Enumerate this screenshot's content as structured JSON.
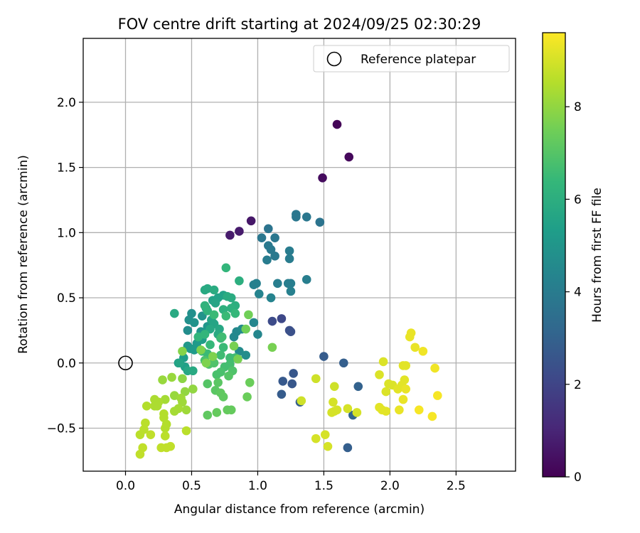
{
  "chart_data": {
    "type": "scatter",
    "title": "FOV centre drift starting at 2024/09/25 02:30:29",
    "xlabel": "Angular distance from reference (arcmin)",
    "ylabel": "Rotation from reference (arcmin)",
    "xlim": [
      -0.32,
      2.95
    ],
    "ylim": [
      -0.83,
      2.49
    ],
    "xticks": [
      0.0,
      0.5,
      1.0,
      1.5,
      2.0,
      2.5
    ],
    "xtick_labels": [
      "0.0",
      "0.5",
      "1.0",
      "1.5",
      "2.0",
      "2.5"
    ],
    "yticks": [
      -0.5,
      0.0,
      0.5,
      1.0,
      1.5,
      2.0
    ],
    "ytick_labels": [
      "−0.5",
      "0.0",
      "0.5",
      "1.0",
      "1.5",
      "2.0"
    ],
    "grid": true,
    "legend": {
      "placement": "top-right",
      "entries": [
        "Reference platepar"
      ]
    },
    "colorbar": {
      "label": "Hours from first FF file",
      "range": [
        0,
        9.6
      ],
      "ticks": [
        0,
        2,
        4,
        6,
        8
      ],
      "tick_labels": [
        "0",
        "2",
        "4",
        "6",
        "8"
      ],
      "colormap": "viridis",
      "colors": [
        "#440154",
        "#482878",
        "#3e4989",
        "#31688e",
        "#26828e",
        "#1f9e89",
        "#35b779",
        "#6ece58",
        "#b5de2b",
        "#fde725"
      ]
    },
    "reference_point": {
      "x": 0.0,
      "y": 0.0,
      "label": "Reference platepar"
    },
    "points": [
      {
        "x": 1.6,
        "y": 1.83,
        "t": 0.1
      },
      {
        "x": 1.69,
        "y": 1.58,
        "t": 0.2
      },
      {
        "x": 1.49,
        "y": 1.42,
        "t": 0.3
      },
      {
        "x": 0.95,
        "y": 1.09,
        "t": 0.6
      },
      {
        "x": 0.86,
        "y": 1.01,
        "t": 0.7
      },
      {
        "x": 0.79,
        "y": 0.98,
        "t": 0.7
      },
      {
        "x": 1.18,
        "y": 0.34,
        "t": 2.1
      },
      {
        "x": 1.11,
        "y": 0.32,
        "t": 2.2
      },
      {
        "x": 1.24,
        "y": 0.25,
        "t": 2.3
      },
      {
        "x": 1.25,
        "y": 0.24,
        "t": 2.4
      },
      {
        "x": 1.27,
        "y": -0.08,
        "t": 2.6
      },
      {
        "x": 1.19,
        "y": -0.14,
        "t": 2.7
      },
      {
        "x": 1.26,
        "y": -0.16,
        "t": 2.6
      },
      {
        "x": 1.18,
        "y": -0.24,
        "t": 2.8
      },
      {
        "x": 1.32,
        "y": -0.3,
        "t": 2.9
      },
      {
        "x": 1.5,
        "y": 0.05,
        "t": 2.8
      },
      {
        "x": 1.65,
        "y": 0.0,
        "t": 2.9
      },
      {
        "x": 1.76,
        "y": -0.18,
        "t": 3.0
      },
      {
        "x": 1.72,
        "y": -0.4,
        "t": 3.1
      },
      {
        "x": 1.68,
        "y": -0.65,
        "t": 2.9
      },
      {
        "x": 1.29,
        "y": 1.14,
        "t": 3.8
      },
      {
        "x": 1.29,
        "y": 1.12,
        "t": 3.8
      },
      {
        "x": 1.37,
        "y": 1.12,
        "t": 3.8
      },
      {
        "x": 1.47,
        "y": 1.08,
        "t": 3.7
      },
      {
        "x": 1.08,
        "y": 1.03,
        "t": 3.7
      },
      {
        "x": 1.03,
        "y": 0.96,
        "t": 3.8
      },
      {
        "x": 1.13,
        "y": 0.96,
        "t": 3.8
      },
      {
        "x": 1.08,
        "y": 0.9,
        "t": 3.9
      },
      {
        "x": 1.1,
        "y": 0.87,
        "t": 3.9
      },
      {
        "x": 1.13,
        "y": 0.82,
        "t": 3.9
      },
      {
        "x": 1.07,
        "y": 0.79,
        "t": 4.0
      },
      {
        "x": 1.24,
        "y": 0.86,
        "t": 4.0
      },
      {
        "x": 1.24,
        "y": 0.8,
        "t": 4.0
      },
      {
        "x": 1.15,
        "y": 0.61,
        "t": 4.1
      },
      {
        "x": 1.23,
        "y": 0.61,
        "t": 4.1
      },
      {
        "x": 1.25,
        "y": 0.61,
        "t": 4.1
      },
      {
        "x": 1.37,
        "y": 0.64,
        "t": 4.1
      },
      {
        "x": 0.97,
        "y": 0.6,
        "t": 4.2
      },
      {
        "x": 0.99,
        "y": 0.61,
        "t": 4.2
      },
      {
        "x": 1.25,
        "y": 0.55,
        "t": 4.2
      },
      {
        "x": 1.1,
        "y": 0.5,
        "t": 4.3
      },
      {
        "x": 1.01,
        "y": 0.53,
        "t": 4.3
      },
      {
        "x": 0.97,
        "y": 0.31,
        "t": 4.4
      },
      {
        "x": 1.0,
        "y": 0.22,
        "t": 4.4
      },
      {
        "x": 0.82,
        "y": 0.2,
        "t": 4.5
      },
      {
        "x": 0.84,
        "y": 0.24,
        "t": 4.5
      },
      {
        "x": 0.88,
        "y": 0.26,
        "t": 4.6
      },
      {
        "x": 0.86,
        "y": 0.09,
        "t": 4.6
      },
      {
        "x": 0.91,
        "y": 0.06,
        "t": 4.7
      },
      {
        "x": 0.47,
        "y": 0.25,
        "t": 4.7
      },
      {
        "x": 0.5,
        "y": 0.38,
        "t": 4.8
      },
      {
        "x": 0.48,
        "y": 0.33,
        "t": 4.8
      },
      {
        "x": 0.52,
        "y": 0.31,
        "t": 4.9
      },
      {
        "x": 0.58,
        "y": 0.36,
        "t": 4.9
      },
      {
        "x": 0.57,
        "y": 0.24,
        "t": 5.0
      },
      {
        "x": 0.62,
        "y": 0.28,
        "t": 5.0
      },
      {
        "x": 0.47,
        "y": 0.13,
        "t": 5.1
      },
      {
        "x": 0.49,
        "y": 0.11,
        "t": 5.1
      },
      {
        "x": 0.52,
        "y": 0.1,
        "t": 5.2
      },
      {
        "x": 0.54,
        "y": 0.15,
        "t": 5.2
      },
      {
        "x": 0.58,
        "y": 0.18,
        "t": 5.3
      },
      {
        "x": 0.44,
        "y": 0.04,
        "t": 5.3
      },
      {
        "x": 0.4,
        "y": 0.0,
        "t": 5.4
      },
      {
        "x": 0.45,
        "y": -0.03,
        "t": 5.4
      },
      {
        "x": 0.61,
        "y": 0.42,
        "t": 5.4
      },
      {
        "x": 0.66,
        "y": 0.48,
        "t": 5.5
      },
      {
        "x": 0.7,
        "y": 0.5,
        "t": 5.5
      },
      {
        "x": 0.74,
        "y": 0.52,
        "t": 5.5
      },
      {
        "x": 0.68,
        "y": 0.46,
        "t": 5.6
      },
      {
        "x": 0.65,
        "y": 0.33,
        "t": 5.6
      },
      {
        "x": 0.67,
        "y": 0.3,
        "t": 5.6
      },
      {
        "x": 0.64,
        "y": 0.26,
        "t": 5.7
      },
      {
        "x": 0.71,
        "y": 0.26,
        "t": 5.7
      },
      {
        "x": 0.7,
        "y": 0.22,
        "t": 5.8
      },
      {
        "x": 0.6,
        "y": 0.56,
        "t": 5.8
      },
      {
        "x": 0.62,
        "y": 0.57,
        "t": 5.8
      },
      {
        "x": 0.67,
        "y": 0.56,
        "t": 5.9
      },
      {
        "x": 0.77,
        "y": 0.51,
        "t": 5.9
      },
      {
        "x": 0.8,
        "y": 0.5,
        "t": 5.9
      },
      {
        "x": 0.83,
        "y": 0.44,
        "t": 6.0
      },
      {
        "x": 0.37,
        "y": 0.38,
        "t": 5.8
      },
      {
        "x": 0.41,
        "y": 0.0,
        "t": 5.6
      },
      {
        "x": 0.47,
        "y": -0.06,
        "t": 5.7
      },
      {
        "x": 0.51,
        "y": -0.06,
        "t": 5.8
      },
      {
        "x": 0.86,
        "y": 0.63,
        "t": 6.0
      },
      {
        "x": 0.74,
        "y": 0.41,
        "t": 6.1
      },
      {
        "x": 0.8,
        "y": 0.42,
        "t": 6.1
      },
      {
        "x": 0.76,
        "y": 0.73,
        "t": 6.3
      },
      {
        "x": 0.6,
        "y": 0.44,
        "t": 6.2
      },
      {
        "x": 0.62,
        "y": 0.4,
        "t": 6.2
      },
      {
        "x": 0.55,
        "y": 0.2,
        "t": 6.3
      },
      {
        "x": 0.6,
        "y": 0.22,
        "t": 6.3
      },
      {
        "x": 0.64,
        "y": 0.14,
        "t": 6.4
      },
      {
        "x": 0.58,
        "y": 0.09,
        "t": 6.4
      },
      {
        "x": 0.62,
        "y": 0.07,
        "t": 6.5
      },
      {
        "x": 0.72,
        "y": 0.19,
        "t": 6.5
      },
      {
        "x": 0.74,
        "y": 0.12,
        "t": 6.5
      },
      {
        "x": 0.72,
        "y": 0.06,
        "t": 6.6
      },
      {
        "x": 0.79,
        "y": 0.04,
        "t": 6.6
      },
      {
        "x": 0.83,
        "y": 0.04,
        "t": 6.6
      },
      {
        "x": 0.75,
        "y": -0.03,
        "t": 6.7
      },
      {
        "x": 0.79,
        "y": -0.01,
        "t": 6.7
      },
      {
        "x": 0.72,
        "y": -0.07,
        "t": 6.8
      },
      {
        "x": 0.69,
        "y": -0.09,
        "t": 6.8
      },
      {
        "x": 0.83,
        "y": 0.38,
        "t": 6.4
      },
      {
        "x": 0.76,
        "y": 0.36,
        "t": 6.5
      },
      {
        "x": 0.67,
        "y": 0.37,
        "t": 6.5
      },
      {
        "x": 0.73,
        "y": 0.2,
        "t": 6.6
      },
      {
        "x": 0.6,
        "y": 0.02,
        "t": 6.8
      },
      {
        "x": 0.63,
        "y": -0.01,
        "t": 6.9
      },
      {
        "x": 0.67,
        "y": 0.0,
        "t": 6.9
      },
      {
        "x": 0.81,
        "y": -0.06,
        "t": 6.9
      },
      {
        "x": 0.78,
        "y": -0.1,
        "t": 7.0
      },
      {
        "x": 0.62,
        "y": -0.16,
        "t": 7.0
      },
      {
        "x": 0.7,
        "y": -0.15,
        "t": 7.1
      },
      {
        "x": 0.68,
        "y": -0.21,
        "t": 7.1
      },
      {
        "x": 0.72,
        "y": -0.23,
        "t": 7.2
      },
      {
        "x": 0.74,
        "y": -0.26,
        "t": 7.2
      },
      {
        "x": 0.62,
        "y": -0.4,
        "t": 7.2
      },
      {
        "x": 0.69,
        "y": -0.38,
        "t": 7.3
      },
      {
        "x": 0.77,
        "y": -0.36,
        "t": 7.3
      },
      {
        "x": 0.8,
        "y": -0.36,
        "t": 7.3
      },
      {
        "x": 0.94,
        "y": -0.15,
        "t": 7.4
      },
      {
        "x": 0.92,
        "y": -0.26,
        "t": 7.4
      },
      {
        "x": 0.91,
        "y": 0.26,
        "t": 7.5
      },
      {
        "x": 0.93,
        "y": 0.37,
        "t": 7.5
      },
      {
        "x": 1.11,
        "y": 0.12,
        "t": 7.6
      },
      {
        "x": 0.85,
        "y": 0.03,
        "t": 7.6
      },
      {
        "x": 0.82,
        "y": 0.13,
        "t": 7.6
      },
      {
        "x": 0.57,
        "y": 0.1,
        "t": 7.7
      },
      {
        "x": 0.61,
        "y": 0.0,
        "t": 7.7
      },
      {
        "x": 0.66,
        "y": 0.05,
        "t": 7.7
      },
      {
        "x": 0.43,
        "y": 0.09,
        "t": 7.8
      },
      {
        "x": 0.43,
        "y": -0.12,
        "t": 7.9
      },
      {
        "x": 0.45,
        "y": -0.22,
        "t": 8.0
      },
      {
        "x": 0.51,
        "y": -0.2,
        "t": 8.0
      },
      {
        "x": 0.35,
        "y": -0.11,
        "t": 8.1
      },
      {
        "x": 0.28,
        "y": -0.13,
        "t": 8.1
      },
      {
        "x": 0.37,
        "y": -0.25,
        "t": 8.1
      },
      {
        "x": 0.42,
        "y": -0.27,
        "t": 8.2
      },
      {
        "x": 0.43,
        "y": -0.3,
        "t": 8.2
      },
      {
        "x": 0.46,
        "y": -0.36,
        "t": 8.2
      },
      {
        "x": 0.4,
        "y": -0.35,
        "t": 8.3
      },
      {
        "x": 0.37,
        "y": -0.37,
        "t": 8.3
      },
      {
        "x": 0.3,
        "y": -0.28,
        "t": 8.3
      },
      {
        "x": 0.25,
        "y": -0.3,
        "t": 8.4
      },
      {
        "x": 0.22,
        "y": -0.28,
        "t": 8.4
      },
      {
        "x": 0.22,
        "y": -0.33,
        "t": 8.4
      },
      {
        "x": 0.24,
        "y": -0.33,
        "t": 8.4
      },
      {
        "x": 0.16,
        "y": -0.33,
        "t": 8.5
      },
      {
        "x": 0.29,
        "y": -0.39,
        "t": 8.5
      },
      {
        "x": 0.29,
        "y": -0.42,
        "t": 8.5
      },
      {
        "x": 0.3,
        "y": -0.5,
        "t": 8.5
      },
      {
        "x": 0.31,
        "y": -0.47,
        "t": 8.5
      },
      {
        "x": 0.3,
        "y": -0.56,
        "t": 8.6
      },
      {
        "x": 0.46,
        "y": -0.52,
        "t": 8.6
      },
      {
        "x": 0.15,
        "y": -0.46,
        "t": 8.6
      },
      {
        "x": 0.14,
        "y": -0.51,
        "t": 8.6
      },
      {
        "x": 0.11,
        "y": -0.55,
        "t": 8.6
      },
      {
        "x": 0.19,
        "y": -0.55,
        "t": 8.7
      },
      {
        "x": 0.27,
        "y": -0.65,
        "t": 8.7
      },
      {
        "x": 0.31,
        "y": -0.65,
        "t": 8.7
      },
      {
        "x": 0.34,
        "y": -0.64,
        "t": 8.7
      },
      {
        "x": 0.13,
        "y": -0.65,
        "t": 8.7
      },
      {
        "x": 0.11,
        "y": -0.7,
        "t": 8.7
      },
      {
        "x": 1.44,
        "y": -0.12,
        "t": 8.9
      },
      {
        "x": 1.33,
        "y": -0.29,
        "t": 8.9
      },
      {
        "x": 1.58,
        "y": -0.18,
        "t": 8.9
      },
      {
        "x": 1.57,
        "y": -0.3,
        "t": 9.0
      },
      {
        "x": 1.58,
        "y": -0.37,
        "t": 9.0
      },
      {
        "x": 1.56,
        "y": -0.38,
        "t": 9.0
      },
      {
        "x": 1.6,
        "y": -0.36,
        "t": 9.0
      },
      {
        "x": 1.68,
        "y": -0.35,
        "t": 9.0
      },
      {
        "x": 1.75,
        "y": -0.38,
        "t": 9.0
      },
      {
        "x": 1.51,
        "y": -0.55,
        "t": 9.0
      },
      {
        "x": 1.44,
        "y": -0.58,
        "t": 9.0
      },
      {
        "x": 1.53,
        "y": -0.64,
        "t": 9.0
      },
      {
        "x": 1.95,
        "y": 0.01,
        "t": 9.1
      },
      {
        "x": 1.92,
        "y": -0.09,
        "t": 9.1
      },
      {
        "x": 1.99,
        "y": -0.16,
        "t": 9.1
      },
      {
        "x": 2.02,
        "y": -0.17,
        "t": 9.1
      },
      {
        "x": 1.97,
        "y": -0.22,
        "t": 9.1
      },
      {
        "x": 1.92,
        "y": -0.34,
        "t": 9.2
      },
      {
        "x": 1.94,
        "y": -0.36,
        "t": 9.2
      },
      {
        "x": 1.97,
        "y": -0.37,
        "t": 9.2
      },
      {
        "x": 2.06,
        "y": -0.2,
        "t": 9.2
      },
      {
        "x": 2.09,
        "y": -0.17,
        "t": 9.2
      },
      {
        "x": 2.11,
        "y": -0.13,
        "t": 9.2
      },
      {
        "x": 2.12,
        "y": -0.02,
        "t": 9.2
      },
      {
        "x": 2.1,
        "y": -0.02,
        "t": 9.2
      },
      {
        "x": 2.12,
        "y": -0.2,
        "t": 9.3
      },
      {
        "x": 2.1,
        "y": -0.28,
        "t": 9.3
      },
      {
        "x": 2.07,
        "y": -0.36,
        "t": 9.3
      },
      {
        "x": 2.15,
        "y": 0.2,
        "t": 9.3
      },
      {
        "x": 2.16,
        "y": 0.23,
        "t": 9.3
      },
      {
        "x": 2.19,
        "y": 0.12,
        "t": 9.3
      },
      {
        "x": 2.25,
        "y": 0.09,
        "t": 9.4
      },
      {
        "x": 2.34,
        "y": -0.04,
        "t": 9.4
      },
      {
        "x": 2.36,
        "y": -0.25,
        "t": 9.5
      },
      {
        "x": 2.22,
        "y": -0.36,
        "t": 9.5
      },
      {
        "x": 2.32,
        "y": -0.41,
        "t": 9.5
      }
    ]
  }
}
